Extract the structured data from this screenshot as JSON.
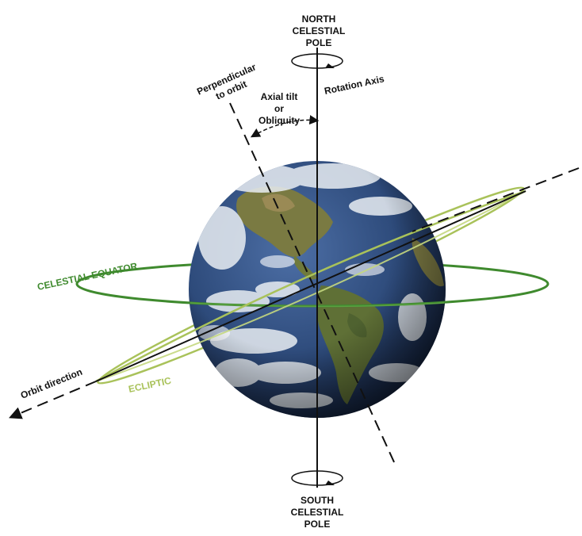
{
  "labels": {
    "north_pole": [
      "NORTH",
      "CELESTIAL",
      "POLE"
    ],
    "south_pole": [
      "SOUTH",
      "CELESTIAL",
      "POLE"
    ],
    "perpendicular": [
      "Perpendicular",
      "to orbit"
    ],
    "axial_tilt": [
      "Axial tilt",
      "or",
      "Obliquity"
    ],
    "rotation_axis": "Rotation Axis",
    "celestial_equator": "CELESTIAL EQUATOR",
    "ecliptic": "ECLIPTIC",
    "orbit_direction": "Orbit direction"
  },
  "colors": {
    "equator": "#3f8a2e",
    "ecliptic": "#a9c25a",
    "ink": "#111111",
    "ocean": "#2d4a7a",
    "land": "#6f7a3c",
    "cloud": "#e9eef3"
  },
  "icons": {
    "rotation_arrow": "circular-arrow-icon",
    "earth": "earth-globe-image"
  }
}
